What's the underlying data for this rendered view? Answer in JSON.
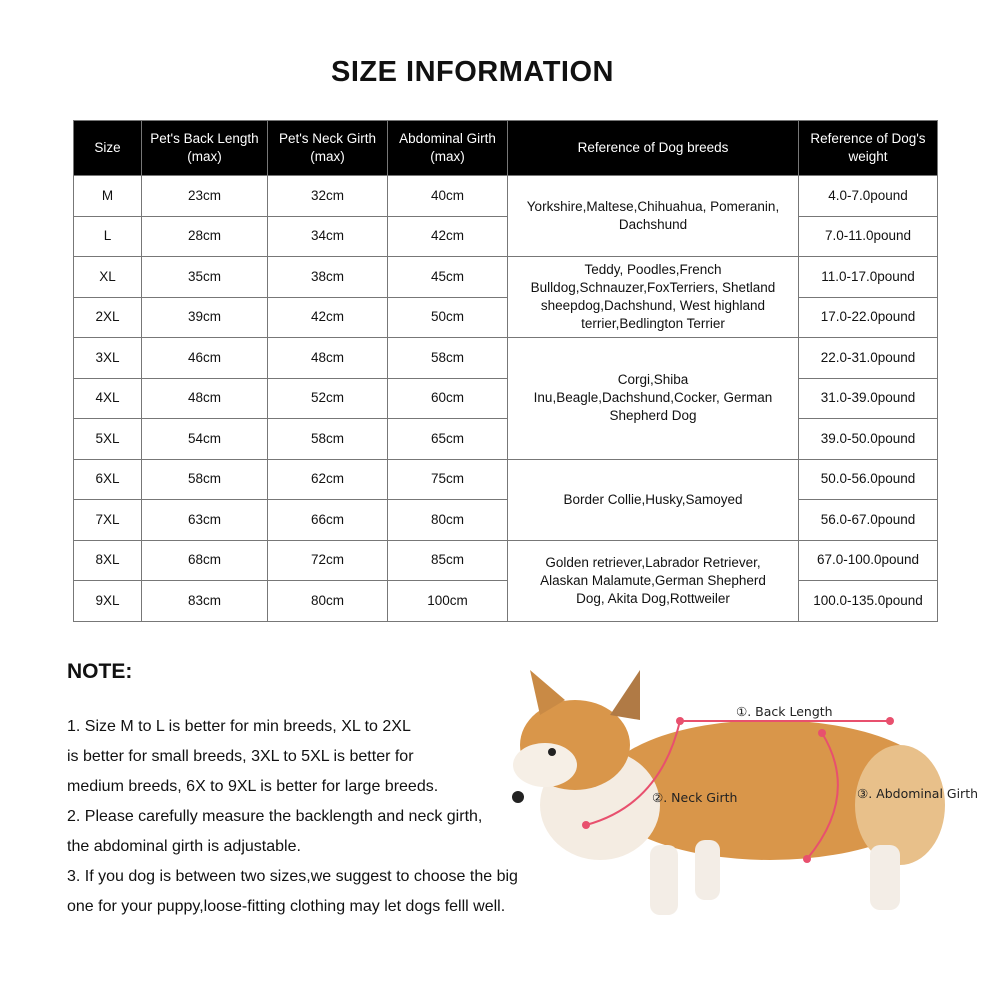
{
  "title": "SIZE INFORMATION",
  "table": {
    "headers": [
      "Size",
      "Pet's Back Length (max)",
      "Pet's Neck Girth (max)",
      "Abdominal Girth (max)",
      "Reference of  Dog breeds",
      "Reference of  Dog's weight"
    ],
    "rows": [
      {
        "size": "M",
        "back": "23cm",
        "neck": "32cm",
        "abdominal": "40cm",
        "weight": "4.0-7.0pound"
      },
      {
        "size": "L",
        "back": "28cm",
        "neck": "34cm",
        "abdominal": "42cm",
        "weight": "7.0-11.0pound"
      },
      {
        "size": "XL",
        "back": "35cm",
        "neck": "38cm",
        "abdominal": "45cm",
        "weight": "11.0-17.0pound"
      },
      {
        "size": "2XL",
        "back": "39cm",
        "neck": "42cm",
        "abdominal": "50cm",
        "weight": "17.0-22.0pound"
      },
      {
        "size": "3XL",
        "back": "46cm",
        "neck": "48cm",
        "abdominal": "58cm",
        "weight": "22.0-31.0pound"
      },
      {
        "size": "4XL",
        "back": "48cm",
        "neck": "52cm",
        "abdominal": "60cm",
        "weight": "31.0-39.0pound"
      },
      {
        "size": "5XL",
        "back": "54cm",
        "neck": "58cm",
        "abdominal": "65cm",
        "weight": "39.0-50.0pound"
      },
      {
        "size": "6XL",
        "back": "58cm",
        "neck": "62cm",
        "abdominal": "75cm",
        "weight": "50.0-56.0pound"
      },
      {
        "size": "7XL",
        "back": "63cm",
        "neck": "66cm",
        "abdominal": "80cm",
        "weight": "56.0-67.0pound"
      },
      {
        "size": "8XL",
        "back": "68cm",
        "neck": "72cm",
        "abdominal": "85cm",
        "weight": "67.0-100.0pound"
      },
      {
        "size": "9XL",
        "back": "83cm",
        "neck": "80cm",
        "abdominal": "100cm",
        "weight": "100.0-135.0pound"
      }
    ],
    "breeds": [
      {
        "span": 2,
        "text": "Yorkshire,Maltese,Chihuahua, Pomeranin, Dachshund"
      },
      {
        "span": 2,
        "text": "Teddy, Poodles,French Bulldog,Schnauzer,FoxTerriers, Shetland sheepdog,Dachshund, West highland terrier,Bedlington Terrier"
      },
      {
        "span": 3,
        "text": "Corgi,Shiba Inu,Beagle,Dachshund,Cocker, German Shepherd Dog"
      },
      {
        "span": 2,
        "text": "Border Collie,Husky,Samoyed"
      },
      {
        "span": 2,
        "text": "Golden retriever,Labrador Retriever, Alaskan Malamute,German Shepherd Dog, Akita Dog,Rottweiler"
      }
    ]
  },
  "note": {
    "title": "NOTE:",
    "lines": [
      "1. Size M to L is better for min breeds, XL to 2XL",
      "is better for small breeds, 3XL to 5XL is better for",
      "medium breeds, 6X to 9XL is better for large breeds.",
      "2. Please carefully measure the backlength and neck girth,",
      "the abdominal girth is adjustable.",
      "3. If you dog is between two sizes,we suggest to choose the big",
      "one for your puppy,loose-fitting clothing may let dogs felll well."
    ]
  },
  "diagram": {
    "back_length": "①. Back Length",
    "neck_girth": "②. Neck Girth",
    "abdominal_girth": "③. Abdominal Girth",
    "line_color": "#e8506e",
    "fur_color": "#d9964a"
  }
}
